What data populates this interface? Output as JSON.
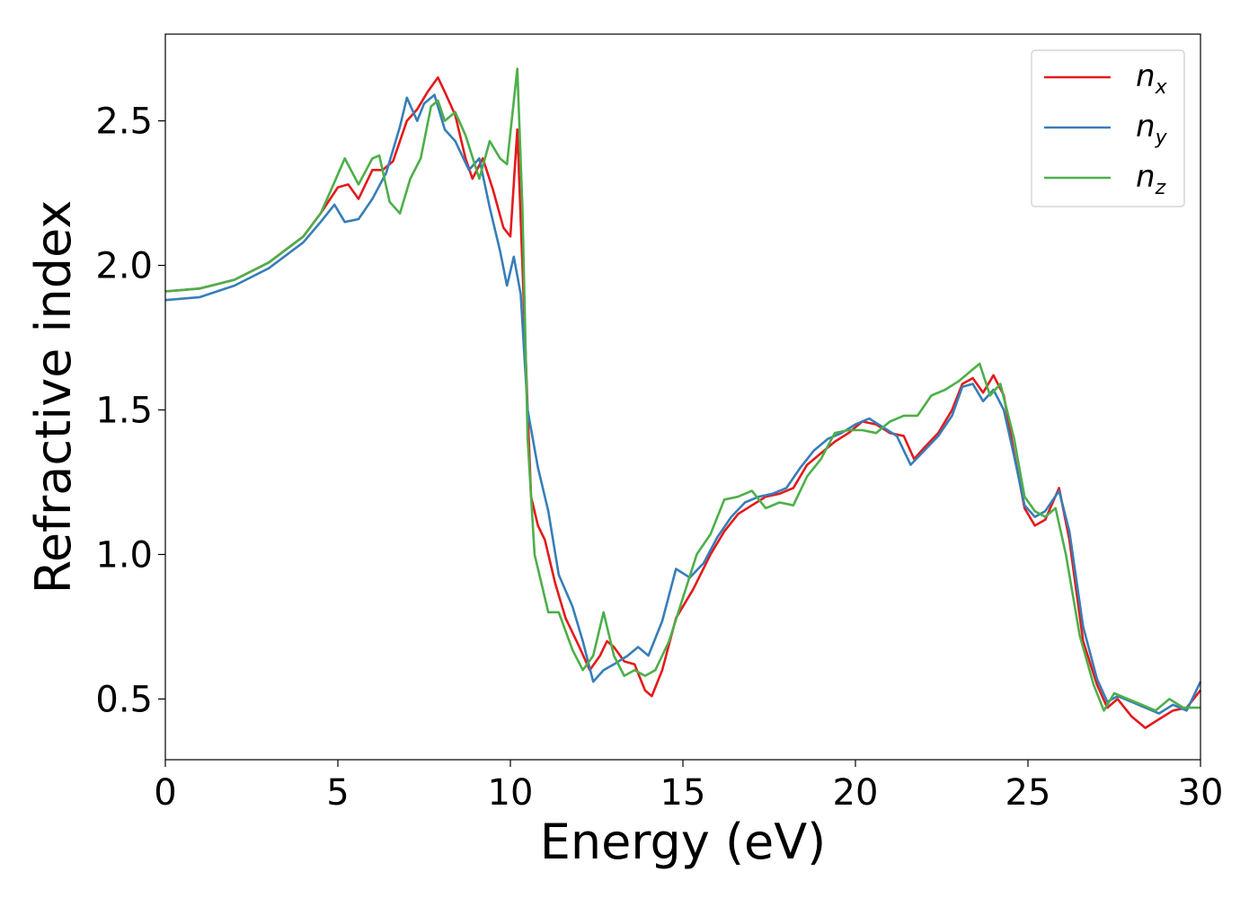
{
  "chart_data": {
    "type": "line",
    "xlabel": "Energy (eV)",
    "ylabel": "Refractive index",
    "xlim": [
      0,
      30
    ],
    "ylim": [
      0.29,
      2.8
    ],
    "xticks": [
      0,
      5,
      10,
      15,
      20,
      25,
      30
    ],
    "xtick_labels": [
      "0",
      "5",
      "10",
      "15",
      "20",
      "25",
      "30"
    ],
    "yticks": [
      0.5,
      1.0,
      1.5,
      2.0,
      2.5
    ],
    "ytick_labels": [
      "0.5",
      "1.0",
      "1.5",
      "2.0",
      "2.5"
    ],
    "grid": false,
    "legend_position": "top-right",
    "series": [
      {
        "name": "n",
        "subscript": "x",
        "color": "#e41a1c",
        "points": [
          [
            0,
            1.91
          ],
          [
            1,
            1.92
          ],
          [
            2,
            1.95
          ],
          [
            3,
            2.01
          ],
          [
            4,
            2.1
          ],
          [
            4.5,
            2.18
          ],
          [
            5,
            2.27
          ],
          [
            5.3,
            2.28
          ],
          [
            5.6,
            2.23
          ],
          [
            6,
            2.33
          ],
          [
            6.3,
            2.33
          ],
          [
            6.6,
            2.36
          ],
          [
            7,
            2.5
          ],
          [
            7.3,
            2.54
          ],
          [
            7.6,
            2.6
          ],
          [
            7.9,
            2.65
          ],
          [
            8.1,
            2.6
          ],
          [
            8.4,
            2.52
          ],
          [
            8.7,
            2.37
          ],
          [
            8.9,
            2.3
          ],
          [
            9.2,
            2.37
          ],
          [
            9.5,
            2.26
          ],
          [
            9.8,
            2.13
          ],
          [
            10,
            2.1
          ],
          [
            10.2,
            2.47
          ],
          [
            10.35,
            2.0
          ],
          [
            10.5,
            1.5
          ],
          [
            10.6,
            1.2
          ],
          [
            10.8,
            1.1
          ],
          [
            11,
            1.05
          ],
          [
            11.3,
            0.9
          ],
          [
            11.6,
            0.78
          ],
          [
            12,
            0.68
          ],
          [
            12.3,
            0.6
          ],
          [
            12.6,
            0.65
          ],
          [
            12.8,
            0.7
          ],
          [
            13,
            0.68
          ],
          [
            13.3,
            0.63
          ],
          [
            13.6,
            0.62
          ],
          [
            13.9,
            0.53
          ],
          [
            14.1,
            0.51
          ],
          [
            14.4,
            0.6
          ],
          [
            14.8,
            0.78
          ],
          [
            15.3,
            0.88
          ],
          [
            15.8,
            1.0
          ],
          [
            16.2,
            1.08
          ],
          [
            16.6,
            1.14
          ],
          [
            17,
            1.17
          ],
          [
            17.4,
            1.2
          ],
          [
            17.8,
            1.21
          ],
          [
            18.2,
            1.23
          ],
          [
            18.6,
            1.31
          ],
          [
            19,
            1.35
          ],
          [
            19.4,
            1.39
          ],
          [
            19.8,
            1.42
          ],
          [
            20.2,
            1.46
          ],
          [
            20.6,
            1.45
          ],
          [
            21,
            1.42
          ],
          [
            21.4,
            1.41
          ],
          [
            21.7,
            1.33
          ],
          [
            22,
            1.37
          ],
          [
            22.4,
            1.42
          ],
          [
            22.8,
            1.5
          ],
          [
            23.1,
            1.59
          ],
          [
            23.4,
            1.61
          ],
          [
            23.7,
            1.56
          ],
          [
            24,
            1.62
          ],
          [
            24.3,
            1.55
          ],
          [
            24.6,
            1.35
          ],
          [
            24.9,
            1.16
          ],
          [
            25.2,
            1.1
          ],
          [
            25.5,
            1.12
          ],
          [
            25.9,
            1.23
          ],
          [
            26.2,
            1.05
          ],
          [
            26.6,
            0.7
          ],
          [
            27,
            0.55
          ],
          [
            27.3,
            0.47
          ],
          [
            27.6,
            0.5
          ],
          [
            28,
            0.44
          ],
          [
            28.4,
            0.4
          ],
          [
            28.8,
            0.43
          ],
          [
            29.2,
            0.46
          ],
          [
            29.6,
            0.47
          ],
          [
            30,
            0.53
          ]
        ]
      },
      {
        "name": "n",
        "subscript": "y",
        "color": "#377eb8",
        "points": [
          [
            0,
            1.88
          ],
          [
            1,
            1.89
          ],
          [
            2,
            1.93
          ],
          [
            3,
            1.99
          ],
          [
            4,
            2.08
          ],
          [
            4.5,
            2.15
          ],
          [
            4.9,
            2.21
          ],
          [
            5.2,
            2.15
          ],
          [
            5.6,
            2.16
          ],
          [
            6,
            2.23
          ],
          [
            6.4,
            2.32
          ],
          [
            6.8,
            2.48
          ],
          [
            7,
            2.58
          ],
          [
            7.3,
            2.5
          ],
          [
            7.5,
            2.56
          ],
          [
            7.8,
            2.59
          ],
          [
            8.1,
            2.47
          ],
          [
            8.4,
            2.43
          ],
          [
            8.8,
            2.33
          ],
          [
            9.1,
            2.37
          ],
          [
            9.4,
            2.2
          ],
          [
            9.7,
            2.05
          ],
          [
            9.9,
            1.93
          ],
          [
            10.1,
            2.03
          ],
          [
            10.3,
            1.9
          ],
          [
            10.5,
            1.5
          ],
          [
            10.8,
            1.3
          ],
          [
            11.1,
            1.15
          ],
          [
            11.4,
            0.93
          ],
          [
            11.8,
            0.82
          ],
          [
            12.1,
            0.7
          ],
          [
            12.4,
            0.56
          ],
          [
            12.7,
            0.6
          ],
          [
            13,
            0.62
          ],
          [
            13.4,
            0.65
          ],
          [
            13.7,
            0.68
          ],
          [
            14,
            0.65
          ],
          [
            14.4,
            0.77
          ],
          [
            14.8,
            0.95
          ],
          [
            15.2,
            0.92
          ],
          [
            15.6,
            0.97
          ],
          [
            16,
            1.06
          ],
          [
            16.4,
            1.13
          ],
          [
            16.8,
            1.18
          ],
          [
            17.2,
            1.2
          ],
          [
            17.6,
            1.21
          ],
          [
            18,
            1.23
          ],
          [
            18.4,
            1.3
          ],
          [
            18.8,
            1.36
          ],
          [
            19.2,
            1.4
          ],
          [
            19.6,
            1.42
          ],
          [
            20,
            1.45
          ],
          [
            20.4,
            1.47
          ],
          [
            20.8,
            1.44
          ],
          [
            21.2,
            1.41
          ],
          [
            21.6,
            1.31
          ],
          [
            22,
            1.36
          ],
          [
            22.4,
            1.41
          ],
          [
            22.8,
            1.48
          ],
          [
            23.1,
            1.58
          ],
          [
            23.4,
            1.59
          ],
          [
            23.7,
            1.53
          ],
          [
            24,
            1.57
          ],
          [
            24.3,
            1.5
          ],
          [
            24.6,
            1.34
          ],
          [
            24.9,
            1.17
          ],
          [
            25.2,
            1.13
          ],
          [
            25.5,
            1.15
          ],
          [
            25.9,
            1.22
          ],
          [
            26.2,
            1.08
          ],
          [
            26.6,
            0.75
          ],
          [
            27,
            0.57
          ],
          [
            27.3,
            0.49
          ],
          [
            27.6,
            0.51
          ],
          [
            28,
            0.49
          ],
          [
            28.4,
            0.47
          ],
          [
            28.8,
            0.45
          ],
          [
            29.2,
            0.48
          ],
          [
            29.6,
            0.46
          ],
          [
            30,
            0.56
          ]
        ]
      },
      {
        "name": "n",
        "subscript": "z",
        "color": "#4daf4a",
        "points": [
          [
            0,
            1.91
          ],
          [
            1,
            1.92
          ],
          [
            2,
            1.95
          ],
          [
            3,
            2.01
          ],
          [
            4,
            2.1
          ],
          [
            4.5,
            2.18
          ],
          [
            4.8,
            2.26
          ],
          [
            5.2,
            2.37
          ],
          [
            5.6,
            2.28
          ],
          [
            6,
            2.37
          ],
          [
            6.2,
            2.38
          ],
          [
            6.5,
            2.22
          ],
          [
            6.8,
            2.18
          ],
          [
            7.1,
            2.3
          ],
          [
            7.4,
            2.37
          ],
          [
            7.7,
            2.55
          ],
          [
            7.9,
            2.57
          ],
          [
            8.1,
            2.5
          ],
          [
            8.4,
            2.53
          ],
          [
            8.7,
            2.45
          ],
          [
            9.1,
            2.3
          ],
          [
            9.4,
            2.43
          ],
          [
            9.7,
            2.37
          ],
          [
            9.9,
            2.35
          ],
          [
            10.2,
            2.68
          ],
          [
            10.35,
            2.2
          ],
          [
            10.5,
            1.4
          ],
          [
            10.7,
            1.0
          ],
          [
            11.1,
            0.8
          ],
          [
            11.4,
            0.8
          ],
          [
            11.8,
            0.67
          ],
          [
            12.1,
            0.6
          ],
          [
            12.4,
            0.65
          ],
          [
            12.7,
            0.8
          ],
          [
            13,
            0.65
          ],
          [
            13.3,
            0.58
          ],
          [
            13.6,
            0.6
          ],
          [
            13.9,
            0.58
          ],
          [
            14.2,
            0.6
          ],
          [
            14.6,
            0.7
          ],
          [
            15,
            0.85
          ],
          [
            15.4,
            1.0
          ],
          [
            15.8,
            1.07
          ],
          [
            16.2,
            1.19
          ],
          [
            16.6,
            1.2
          ],
          [
            17,
            1.22
          ],
          [
            17.4,
            1.16
          ],
          [
            17.8,
            1.18
          ],
          [
            18.2,
            1.17
          ],
          [
            18.6,
            1.27
          ],
          [
            19,
            1.33
          ],
          [
            19.4,
            1.42
          ],
          [
            19.8,
            1.43
          ],
          [
            20.2,
            1.43
          ],
          [
            20.6,
            1.42
          ],
          [
            21,
            1.46
          ],
          [
            21.4,
            1.48
          ],
          [
            21.8,
            1.48
          ],
          [
            22.2,
            1.55
          ],
          [
            22.6,
            1.57
          ],
          [
            23,
            1.6
          ],
          [
            23.3,
            1.63
          ],
          [
            23.6,
            1.66
          ],
          [
            23.9,
            1.55
          ],
          [
            24.2,
            1.59
          ],
          [
            24.6,
            1.4
          ],
          [
            24.9,
            1.2
          ],
          [
            25.2,
            1.15
          ],
          [
            25.5,
            1.13
          ],
          [
            25.8,
            1.16
          ],
          [
            26.1,
            1.0
          ],
          [
            26.5,
            0.72
          ],
          [
            26.9,
            0.55
          ],
          [
            27.2,
            0.46
          ],
          [
            27.5,
            0.52
          ],
          [
            27.9,
            0.5
          ],
          [
            28.3,
            0.48
          ],
          [
            28.7,
            0.46
          ],
          [
            29.1,
            0.5
          ],
          [
            29.5,
            0.47
          ],
          [
            30,
            0.47
          ]
        ]
      }
    ]
  }
}
